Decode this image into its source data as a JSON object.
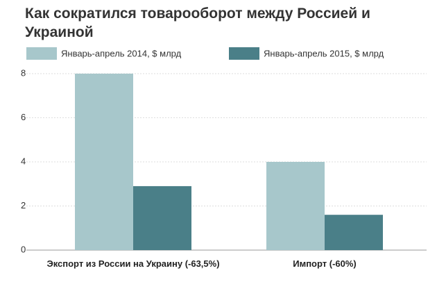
{
  "chart_data": {
    "type": "bar",
    "title": "Как сократился товарооборот между Россией и Украиной",
    "categories": [
      "Экспорт из России на Украину (-63,5%)",
      "Импорт (-60%)"
    ],
    "series": [
      {
        "name": "Январь-апрель 2014, $ млрд",
        "color": "#a7c7cb",
        "values": [
          8,
          4
        ]
      },
      {
        "name": "Январь-апрель 2015, $ млрд",
        "color": "#4a7f88",
        "values": [
          2.9,
          1.6
        ]
      }
    ],
    "ylim": [
      0,
      8
    ],
    "yticks": [
      0,
      2,
      4,
      6,
      8
    ],
    "grid": true
  }
}
